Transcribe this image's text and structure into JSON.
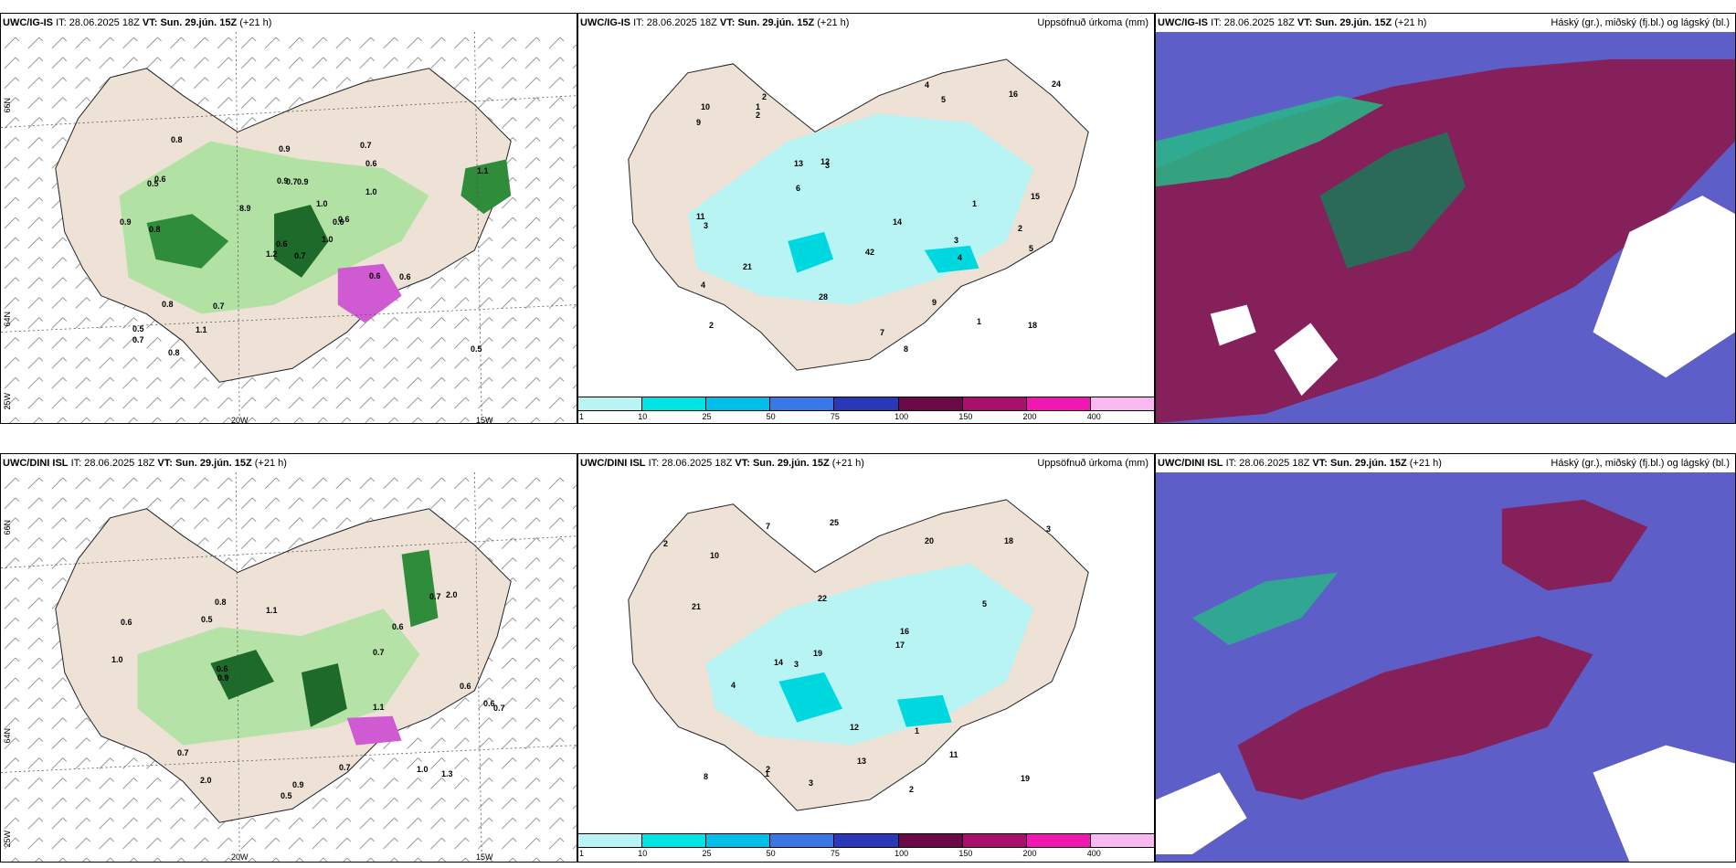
{
  "panels": {
    "top": {
      "model": "UWC/IG-IS",
      "left": {
        "it_label": "IT:",
        "it": "28.06.2025 18Z",
        "vt_label": "VT:",
        "vt": "Sun. 29.jún. 15Z",
        "lead": "(+21 h)"
      },
      "mid": {
        "it_label": "IT:",
        "it": "28.06.2025 18Z",
        "vt_label": "VT:",
        "vt": "Sun. 29.jún. 15Z",
        "lead": "(+21 h)",
        "title": "Uppsöfnuð úrkoma (mm)"
      },
      "right": {
        "it_label": "IT:",
        "it": "28.06.2025 18Z",
        "vt_label": "VT:",
        "vt": "Sun. 29.jún. 15Z",
        "lead": "(+21 h)",
        "title": "Háský (gr.), miðský (fj.bl.) og lágský (bl.)"
      }
    },
    "bottom": {
      "model": "UWC/DINI ISL",
      "left": {
        "it_label": "IT:",
        "it": "28.06.2025 18Z",
        "vt_label": "VT:",
        "vt": "Sun. 29.jún. 15Z",
        "lead": "(+21 h)"
      },
      "mid": {
        "it_label": "IT:",
        "it": "28.06.2025 18Z",
        "vt_label": "VT:",
        "vt": "Sun. 29.jún. 15Z",
        "lead": "(+21 h)",
        "title": "Uppsöfnuð úrkoma (mm)"
      },
      "right": {
        "it_label": "IT:",
        "it": "28.06.2025 18Z",
        "vt_label": "VT:",
        "vt": "Sun. 29.jún. 15Z",
        "lead": "(+21 h)",
        "title": "Háský (gr.), miðský (fj.bl.) og lágský (bl.)"
      }
    }
  },
  "grid": {
    "lat66": "66N",
    "lat64": "64N",
    "lon20": "20W",
    "lon15": "15W",
    "lon25": "25W"
  },
  "legend": {
    "ticks": [
      "1",
      "10",
      "25",
      "50",
      "75",
      "100",
      "150",
      "200",
      "400"
    ],
    "colors": [
      "#b8f4f4",
      "#00e4e4",
      "#00bfe8",
      "#3a78e8",
      "#2838b8",
      "#6a0848",
      "#a8106e",
      "#f018b0",
      "#f8b8f0"
    ]
  },
  "values": {
    "top_left": [
      "0.7",
      "0.5",
      "0.6",
      "0.5",
      "0.6",
      "0.7",
      "0.7",
      "0.9",
      "0.6",
      "1.0",
      "0.8",
      "0.5",
      "0.8",
      "1.1",
      "1.2",
      "1.0",
      "0.8",
      "0.9",
      "1.0",
      "0.8",
      "8.9",
      "0.7",
      "1.1",
      "0.7",
      "0.6",
      "0.6",
      "0.6",
      "0.9",
      "0.9",
      "0.6"
    ],
    "top_mid": [
      "3",
      "2",
      "2",
      "2",
      "3",
      "1",
      "4",
      "5",
      "13",
      "8",
      "9",
      "11",
      "10",
      "18",
      "28",
      "15",
      "42",
      "14",
      "12",
      "21",
      "24",
      "16",
      "6",
      "5",
      "4",
      "1",
      "4",
      "3",
      "2",
      "1",
      "7",
      "9"
    ],
    "bottom_left": [
      "0.6",
      "0.5",
      "0.7",
      "0.9",
      "0.7",
      "0.5",
      "1.1",
      "0.9",
      "2.0",
      "0.7",
      "0.6",
      "0.8",
      "0.6",
      "0.7",
      "1.0",
      "2.0",
      "0.6",
      "1.1",
      "1.3",
      "0.7",
      "1.0",
      "0.6"
    ],
    "bottom_mid": [
      "3",
      "2",
      "2",
      "11",
      "7",
      "10",
      "14",
      "19",
      "25",
      "22",
      "18",
      "13",
      "19",
      "12",
      "20",
      "17",
      "21",
      "1",
      "3",
      "2",
      "1",
      "3",
      "16",
      "8",
      "5",
      "4"
    ]
  }
}
